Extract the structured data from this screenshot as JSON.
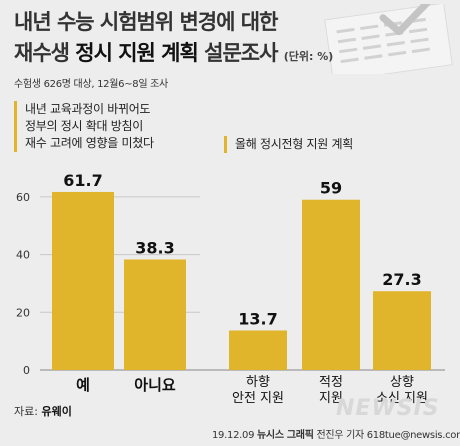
{
  "header": {
    "title_line1": "내년 수능 시험범위 변경에 대한",
    "title_line2_prefix": "재수생 ",
    "title_line2_bold": "정시 지원 계획",
    "title_line2_suffix": " 설문조사",
    "unit": "(단위: %)",
    "survey_info": "수험생 626명 대상, 12월6~8일 조사"
  },
  "chart_data": [
    {
      "type": "bar",
      "title": "내년 교육과정이 바뀌어도 정부의 정시 확대 방침이 재수 고려에 영향을 미쳤다",
      "title_lines": [
        "내년 교육과정이 바뀌어도",
        "정부의 정시 확대 방침이",
        "재수 고려에 영향을 미쳤다"
      ],
      "categories": [
        "예",
        "아니요"
      ],
      "values": [
        61.7,
        38.3
      ],
      "value_labels": [
        "61.7",
        "38.3"
      ],
      "ylim": [
        0,
        70
      ],
      "yticks": [
        "0",
        "20",
        "40",
        "60"
      ],
      "grid": true,
      "color": "#e0b52c"
    },
    {
      "type": "bar",
      "title": "올해 정시전형 지원 계획",
      "categories": [
        [
          "하향",
          "안전 지원"
        ],
        [
          "적정",
          "지원"
        ],
        [
          "상향",
          "소신 지원"
        ]
      ],
      "values": [
        13.7,
        59,
        27.3
      ],
      "value_labels": [
        "13.7",
        "59",
        "27.3"
      ],
      "ylim": [
        0,
        70
      ],
      "color": "#e0b52c"
    }
  ],
  "footer": {
    "source_prefix": "자료: ",
    "source_name": "유웨이",
    "credit_date": "19.12.09 ",
    "credit_agency": "뉴시스 그래픽",
    "credit_rest": " 전진우 기자 618tue@newsis.com",
    "watermark": "NEWSIS"
  },
  "colors": {
    "bar": "#e0b52c",
    "background": "#ededed",
    "grid": "#c8c8c8"
  }
}
